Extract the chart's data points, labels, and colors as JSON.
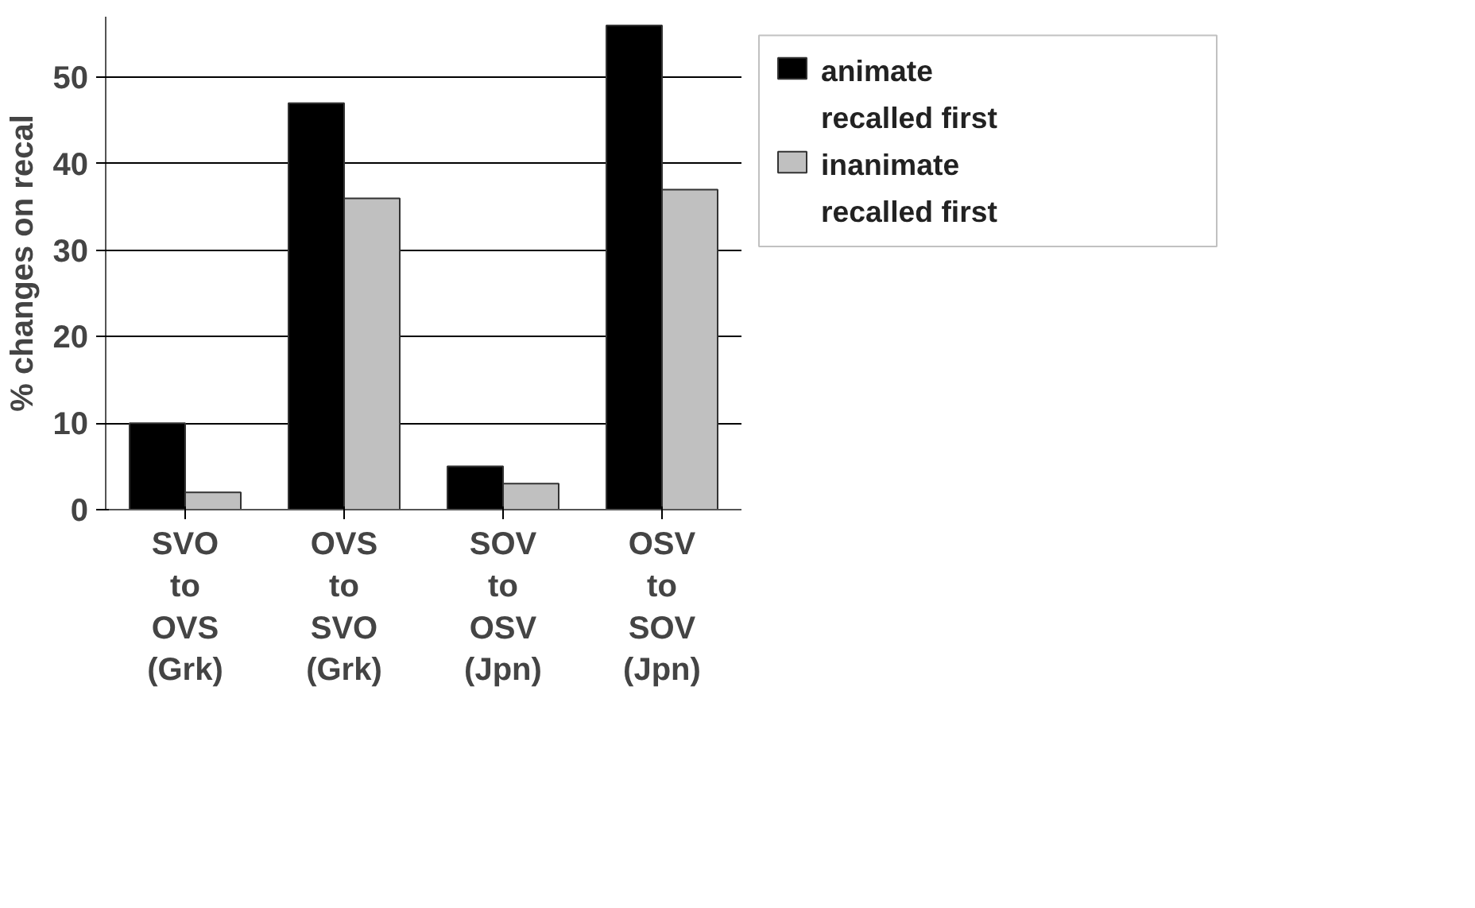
{
  "chart_data": {
    "type": "bar",
    "ylabel": "% changes on recal",
    "categories": [
      "SVO\nto\nOVS\n(Grk)",
      "OVS\nto\nSVO\n(Grk)",
      "SOV\nto\nOSV\n(Jpn)",
      "OSV\nto\nSOV\n(Jpn)"
    ],
    "series": [
      {
        "name": "animate\nrecalled first",
        "color": "#000000",
        "values": [
          10,
          47,
          5,
          56
        ]
      },
      {
        "name": "inanimate\nrecalled first",
        "color": "#c0c0c0",
        "values": [
          2,
          36,
          3,
          37
        ]
      }
    ],
    "ylim": [
      0,
      57
    ],
    "yticks": [
      0,
      10,
      20,
      30,
      40,
      50
    ],
    "grid": "y",
    "legend": "right"
  }
}
